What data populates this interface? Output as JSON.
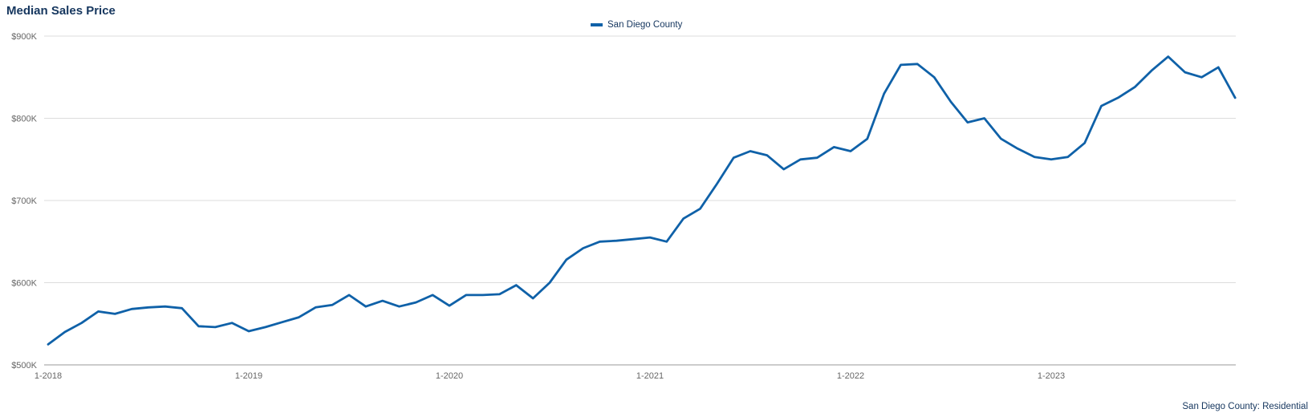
{
  "header": {
    "title": "Median Sales Price"
  },
  "legend": {
    "label": "San Diego County"
  },
  "footer": {
    "note": "San Diego County: Residential"
  },
  "colors": {
    "line": "#0f61a8",
    "grid": "#dcdcdc",
    "axis": "#9a9a9a",
    "tick_text": "#666666",
    "title_text": "#15365e"
  },
  "chart_data": {
    "type": "line",
    "title": "Median Sales Price",
    "xlabel": "",
    "ylabel": "",
    "unit": "USD thousands",
    "x_start": "2018-01",
    "x_interval": "month",
    "ylim": [
      500,
      900
    ],
    "grid": "horizontal",
    "legend_position": "top-center",
    "series": [
      {
        "name": "San Diego County",
        "values": [
          525,
          540,
          551,
          565,
          562,
          568,
          570,
          571,
          569,
          547,
          546,
          551,
          541,
          546,
          552,
          558,
          570,
          573,
          585,
          571,
          578,
          571,
          576,
          585,
          572,
          585,
          585,
          586,
          597,
          581,
          600,
          628,
          642,
          650,
          651,
          653,
          655,
          650,
          678,
          690,
          720,
          752,
          760,
          755,
          738,
          750,
          752,
          765,
          760,
          775,
          830,
          865,
          866,
          850,
          820,
          795,
          800,
          775,
          763,
          753,
          750,
          753,
          770,
          815,
          825,
          838,
          858,
          875,
          856,
          850,
          862,
          825
        ]
      }
    ],
    "y_ticks": [
      {
        "value": 500,
        "label": "$500K"
      },
      {
        "value": 600,
        "label": "$600K"
      },
      {
        "value": 700,
        "label": "$700K"
      },
      {
        "value": 800,
        "label": "$800K"
      },
      {
        "value": 900,
        "label": "$900K"
      }
    ],
    "x_ticks": [
      {
        "index": 0,
        "label": "1-2018"
      },
      {
        "index": 12,
        "label": "1-2019"
      },
      {
        "index": 24,
        "label": "1-2020"
      },
      {
        "index": 36,
        "label": "1-2021"
      },
      {
        "index": 48,
        "label": "1-2022"
      },
      {
        "index": 60,
        "label": "1-2023"
      }
    ]
  }
}
